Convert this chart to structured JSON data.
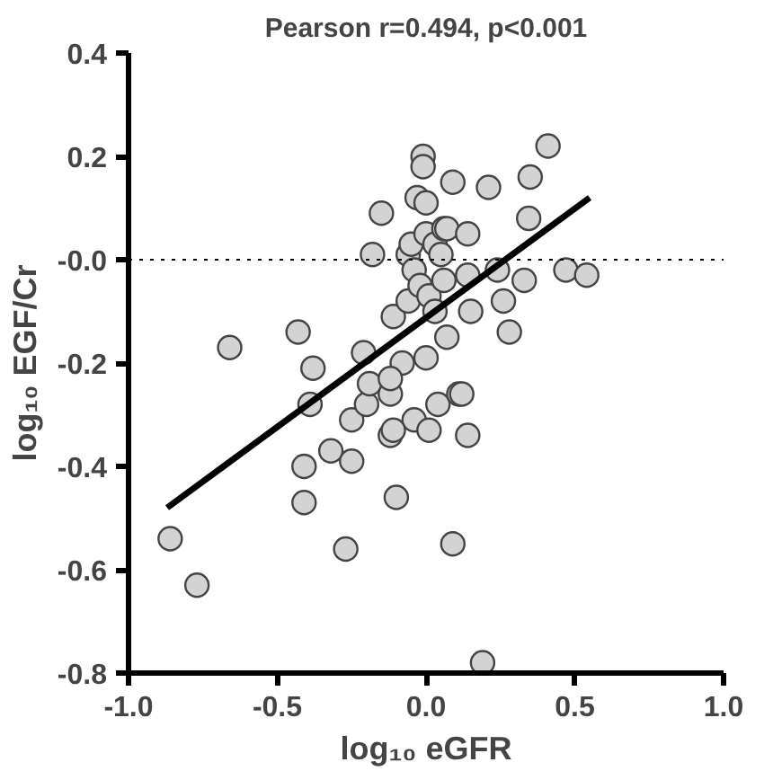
{
  "chart_data": {
    "type": "scatter",
    "title": "Pearson r=0.494, p<0.001",
    "xlabel": "log₁₀ eGFR",
    "ylabel": "log₁₀ EGF/Cr",
    "xlim": [
      -1.0,
      1.0
    ],
    "ylim": [
      -0.8,
      0.4
    ],
    "xticks": [
      {
        "value": -1.0,
        "label": "-1.0"
      },
      {
        "value": -0.5,
        "label": "-0.5"
      },
      {
        "value": 0,
        "label": "0.0"
      },
      {
        "value": 0.5,
        "label": "0.5"
      },
      {
        "value": 1.0,
        "label": "1.0"
      }
    ],
    "yticks": [
      {
        "value": -0.8,
        "label": "-0.8"
      },
      {
        "value": -0.6,
        "label": "-0.6"
      },
      {
        "value": -0.4,
        "label": "-0.4"
      },
      {
        "value": -0.2,
        "label": "-0.2"
      },
      {
        "value": 0,
        "label": "-0.0"
      },
      {
        "value": 0.2,
        "label": "0.2"
      },
      {
        "value": 0.4,
        "label": "0.4"
      }
    ],
    "grid": false,
    "ref_lines": [
      {
        "axis": "y",
        "value": 0,
        "label": null,
        "color": "#000000",
        "line_style": "dotted"
      }
    ],
    "series": [
      {
        "marker": "circle",
        "color": "#d3d3d3",
        "x": [
          -0.86,
          -0.77,
          -0.66,
          -0.43,
          -0.41,
          -0.41,
          -0.38,
          -0.39,
          -0.32,
          -0.25,
          -0.27,
          -0.25,
          -0.21,
          -0.2,
          -0.19,
          -0.18,
          -0.15,
          -0.12,
          -0.12,
          -0.11,
          -0.1,
          -0.08,
          -0.06,
          -0.06,
          -0.05,
          -0.04,
          -0.04,
          -0.03,
          -0.02,
          -0.01,
          -0.01,
          0.0,
          0.0,
          0.0,
          0.01,
          0.01,
          0.03,
          0.03,
          0.04,
          0.05,
          0.06,
          0.06,
          0.07,
          0.07,
          0.09,
          0.09,
          0.11,
          0.12,
          0.14,
          0.14,
          0.14,
          0.15,
          0.19,
          0.21,
          0.24,
          0.26,
          0.28,
          0.33,
          0.345,
          0.35,
          0.41,
          0.47,
          0.54,
          -0.12,
          -0.11
        ],
        "values": [
          -0.54,
          -0.63,
          -0.17,
          -0.14,
          -0.4,
          -0.47,
          -0.21,
          -0.28,
          -0.37,
          -0.39,
          -0.56,
          -0.31,
          -0.18,
          -0.28,
          -0.24,
          0.01,
          0.09,
          -0.26,
          -0.34,
          -0.11,
          -0.46,
          -0.2,
          -0.08,
          0.01,
          0.03,
          -0.02,
          -0.31,
          0.12,
          -0.05,
          0.2,
          0.18,
          0.11,
          0.05,
          -0.19,
          -0.07,
          -0.33,
          0.03,
          -0.1,
          -0.28,
          0.01,
          0.06,
          -0.04,
          -0.15,
          0.06,
          0.15,
          -0.55,
          -0.26,
          -0.26,
          0.05,
          -0.03,
          -0.34,
          -0.1,
          -0.78,
          0.14,
          -0.02,
          -0.08,
          -0.14,
          -0.04,
          0.08,
          0.16,
          0.22,
          -0.02,
          -0.03,
          -0.23,
          -0.33
        ]
      },
      {
        "type": "line",
        "color": "#000000",
        "x": [
          -0.87,
          0.55
        ],
        "values": [
          -0.48,
          0.12
        ],
        "line_style": "solid",
        "marker": "none"
      }
    ]
  }
}
